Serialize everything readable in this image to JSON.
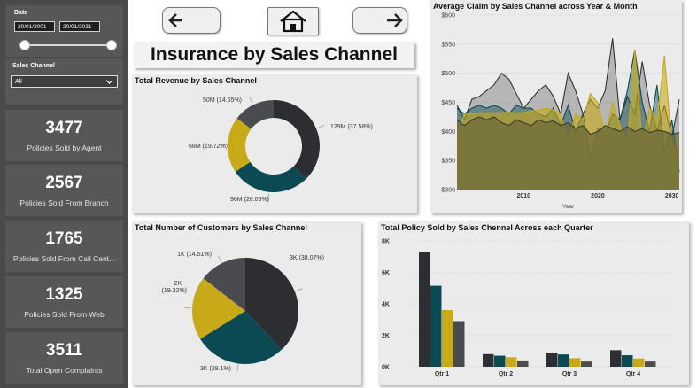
{
  "filters": {
    "date_label": "Date",
    "start_date": "20/01/2001",
    "end_date": "20/01/2031",
    "channel_label": "Sales Channel",
    "channel_value": "All"
  },
  "kpis": [
    {
      "value": "3477",
      "label": "Policies Sold by Agent"
    },
    {
      "value": "2567",
      "label": "Policies Sold From Branch"
    },
    {
      "value": "1765",
      "label": "Policies Sold From Call Cent..."
    },
    {
      "value": "1325",
      "label": "Policies Sold From Web"
    },
    {
      "value": "3511",
      "label": "Total Open Complaints"
    }
  ],
  "nav": {
    "back_icon": "left-arrow-icon",
    "home_icon": "home-icon",
    "forward_icon": "right-arrow-icon"
  },
  "page_title": "Insurance by Sales Channel",
  "colors": {
    "agent": "#2d2e31",
    "branch": "#0b4a52",
    "callcenter": "#c8a918",
    "web": "#4a4b4e"
  },
  "chart_data": [
    {
      "type": "pie",
      "variant": "donut",
      "title": "Total Revenue by Sales Channel",
      "slice_labels": [
        "129M (37.58%)",
        "96M (28.05%)",
        "68M (19.72%)",
        "50M (14.65%)"
      ],
      "values": [
        37.58,
        28.05,
        19.72,
        14.65
      ]
    },
    {
      "type": "pie",
      "title": "Total Number of Customers by Sales Channel",
      "slice_labels": [
        "3K (38.07%)",
        "3K (28.1%)",
        "2K (19.32%)",
        "1K (14.51%)"
      ],
      "values": [
        38.07,
        28.1,
        19.32,
        14.51
      ]
    },
    {
      "type": "area",
      "title": "Average Claim by Sales Channel across Year & Month",
      "xlabel": "Year",
      "x_ticks": [
        "2010",
        "2020",
        "2030"
      ],
      "y_ticks": [
        "$300",
        "$350",
        "$400",
        "$450",
        "$500",
        "$550",
        "$600"
      ],
      "ylim": [
        300,
        600
      ],
      "x": [
        2001,
        2002,
        2003,
        2004,
        2005,
        2006,
        2007,
        2008,
        2009,
        2010,
        2011,
        2012,
        2013,
        2014,
        2015,
        2016,
        2017,
        2018,
        2019,
        2020,
        2021,
        2022,
        2023,
        2024,
        2025,
        2026,
        2027,
        2028,
        2029,
        2030,
        2031
      ],
      "series": [
        {
          "values": [
            445,
            420,
            455,
            460,
            470,
            480,
            500,
            490,
            465,
            440,
            455,
            470,
            480,
            460,
            430,
            500,
            470,
            430,
            455,
            440,
            470,
            560,
            420,
            460,
            430,
            520,
            445,
            400,
            445,
            390,
            455
          ]
        },
        {
          "values": [
            440,
            430,
            440,
            445,
            440,
            445,
            440,
            430,
            445,
            440,
            440,
            430,
            425,
            440,
            410,
            445,
            400,
            430,
            355,
            405,
            395,
            430,
            420,
            470,
            540,
            450,
            400,
            480,
            360,
            420,
            330
          ]
        },
        {
          "values": [
            390,
            430,
            430,
            432,
            432,
            432,
            432,
            433,
            432,
            432,
            435,
            437,
            440,
            437,
            430,
            380,
            430,
            420,
            465,
            450,
            395,
            450,
            410,
            380,
            540,
            380,
            440,
            420,
            530,
            375,
            375
          ]
        },
        {
          "values": [
            420,
            410,
            420,
            425,
            420,
            425,
            415,
            410,
            420,
            415,
            410,
            420,
            415,
            418,
            410,
            415,
            405,
            410,
            395,
            400,
            410,
            405,
            400,
            408,
            400,
            405,
            398,
            402,
            400,
            395,
            398
          ]
        }
      ]
    },
    {
      "type": "bar",
      "title": "Total Policy Sold by Sales Chennel Across each Quarter",
      "categories": [
        "Qtr 1",
        "Qtr 2",
        "Qtr 3",
        "Qtr 4"
      ],
      "y_ticks": [
        "0K",
        "2K",
        "4K",
        "6K",
        "8K"
      ],
      "ylim": [
        0,
        8000
      ],
      "series": [
        {
          "values": [
            7300,
            800,
            900,
            1050
          ]
        },
        {
          "values": [
            5150,
            700,
            780,
            730
          ]
        },
        {
          "values": [
            3600,
            600,
            540,
            520
          ]
        },
        {
          "values": [
            2900,
            400,
            330,
            330
          ]
        }
      ]
    }
  ]
}
